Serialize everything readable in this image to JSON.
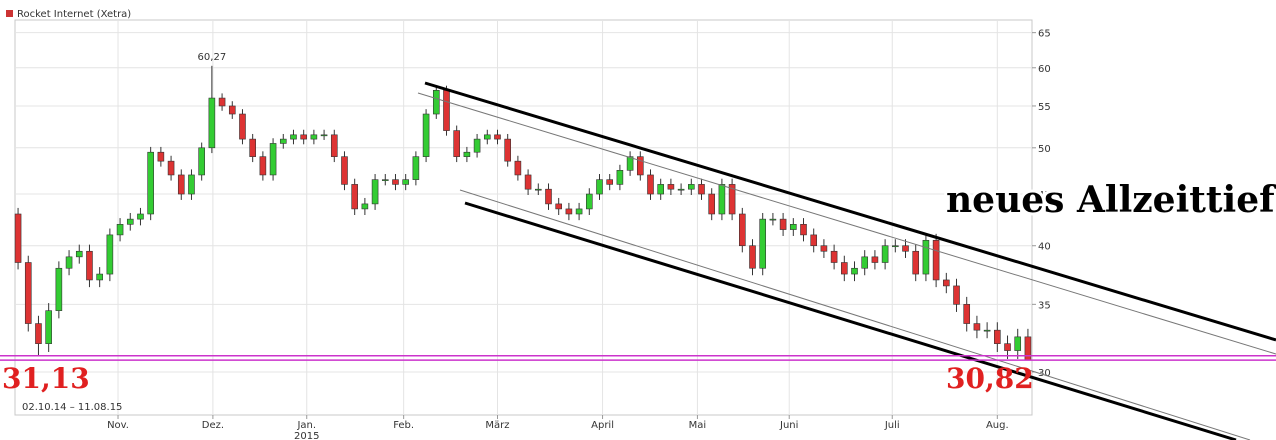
{
  "chart_data": {
    "type": "candlestick",
    "legend": "Rocket Internet (Xetra)",
    "color": "#cc3333",
    "up_color": "#33cc33",
    "down_color": "#dd3333",
    "date_range": "02.10.14 – 11.08.15",
    "annotation": "neues Allzeittief",
    "peak": {
      "value": 60.27,
      "label": "60,27"
    },
    "hlines": [
      {
        "value": 31.13,
        "label": "31,13"
      },
      {
        "value": 30.82,
        "label": "30,82"
      }
    ],
    "hline_color": "#cc33cc",
    "log_scale": true,
    "grid": true,
    "ylim": [
      27.2,
      66.9
    ],
    "yticks": [
      30,
      35,
      40,
      45,
      50,
      55,
      60,
      65
    ],
    "xlim": [
      -0.3,
      99.4
    ],
    "xticks": [
      {
        "value": 9.8,
        "label": "Nov."
      },
      {
        "value": 19.1,
        "label": "Dez."
      },
      {
        "value": 28.3,
        "label": "Jan."
      },
      {
        "value": 37.8,
        "label": "Feb."
      },
      {
        "value": 47,
        "label": "März"
      },
      {
        "value": 57.3,
        "label": "April"
      },
      {
        "value": 66.6,
        "label": "Mai"
      },
      {
        "value": 75.6,
        "label": "Juni"
      },
      {
        "value": 85.7,
        "label": "Juli"
      },
      {
        "value": 96,
        "label": "Aug."
      }
    ],
    "year_label": "2015",
    "open": [
      43,
      38.5,
      33.5,
      32,
      34.5,
      38,
      39,
      39.5,
      37,
      37.5,
      41,
      42,
      42.5,
      43,
      49.5,
      48.5,
      47,
      45,
      47,
      50,
      56,
      55,
      54,
      51,
      49,
      47,
      50.5,
      51,
      51.5,
      51,
      51.5,
      51.5,
      49,
      46,
      43.5,
      44,
      46.5,
      46.5,
      46,
      46.5,
      49,
      54,
      57,
      52,
      49,
      49.5,
      51,
      51.5,
      51,
      48.5,
      47,
      45.5,
      45.5,
      44,
      43.5,
      43,
      43.5,
      45,
      46.5,
      46,
      47.5,
      49,
      47,
      45,
      46,
      45.5,
      45.5,
      46,
      45,
      43,
      46,
      43,
      40,
      38,
      42.5,
      42.5,
      41.5,
      42,
      41,
      40,
      39.5,
      38.5,
      37.5,
      38,
      39,
      38.5,
      40,
      40,
      39.5,
      37.5,
      40.5,
      37,
      36.5,
      35,
      33.5,
      33,
      33,
      32,
      31.5,
      32.5
    ],
    "high": [
      43.6,
      39.1,
      34.1,
      35.1,
      38.6,
      39.6,
      40.1,
      40.1,
      38.1,
      41.6,
      42.6,
      43.1,
      43.6,
      50.1,
      50.1,
      49.1,
      47.6,
      47.6,
      50.6,
      60.27,
      56.6,
      55.6,
      54.6,
      51.6,
      49.6,
      51.1,
      51.6,
      52.1,
      52.1,
      52.1,
      52.1,
      52.1,
      49.6,
      46.6,
      44.6,
      47.1,
      47.1,
      47.1,
      47.1,
      49.6,
      54.6,
      57.6,
      57.6,
      52.6,
      50.1,
      51.6,
      52.1,
      52.1,
      51.6,
      49.1,
      47.6,
      46.1,
      46.1,
      44.6,
      44.1,
      44.1,
      45.6,
      47.1,
      47.1,
      48.1,
      49.6,
      49.6,
      47.6,
      46.6,
      46.6,
      46.1,
      46.6,
      46.6,
      45.6,
      46.6,
      46.6,
      43.6,
      40.6,
      43.1,
      43.1,
      43.1,
      42.6,
      42.6,
      41.6,
      40.6,
      40.1,
      39.1,
      38.6,
      39.6,
      39.6,
      40.6,
      40.6,
      40.6,
      40.1,
      41.1,
      41.1,
      37.6,
      37.1,
      35.6,
      34.1,
      33.6,
      33.6,
      32.6,
      33.1,
      33.1
    ],
    "low": [
      37.9,
      32.9,
      31.13,
      31.4,
      33.9,
      37.4,
      38.4,
      36.4,
      36.4,
      36.9,
      40.4,
      41.4,
      41.9,
      42.4,
      47.9,
      46.4,
      44.4,
      44.4,
      46.4,
      49.4,
      54.4,
      53.4,
      50.4,
      48.4,
      46.4,
      46.4,
      49.9,
      50.4,
      50.4,
      50.4,
      50.9,
      48.4,
      45.4,
      42.9,
      42.9,
      43.4,
      45.9,
      45.4,
      45.4,
      45.9,
      48.4,
      53.4,
      51.4,
      48.4,
      48.4,
      48.9,
      50.4,
      50.4,
      47.9,
      46.4,
      44.9,
      44.9,
      43.4,
      42.9,
      42.4,
      42.4,
      42.9,
      44.4,
      45.4,
      45.4,
      46.9,
      46.4,
      44.4,
      44.4,
      44.9,
      44.9,
      44.9,
      44.4,
      42.4,
      42.4,
      42.4,
      39.4,
      37.4,
      37.4,
      41.9,
      40.9,
      40.9,
      40.4,
      39.4,
      38.9,
      37.9,
      36.9,
      36.9,
      37.4,
      37.9,
      37.9,
      39.4,
      38.9,
      36.9,
      36.9,
      36.4,
      35.9,
      34.4,
      32.9,
      32.4,
      32.4,
      31.4,
      30.9,
      30.9,
      30.82
    ],
    "close": [
      38.5,
      33.5,
      32,
      34.5,
      38,
      39,
      39.5,
      37,
      37.5,
      41,
      42,
      42.5,
      43,
      49.5,
      48.5,
      47,
      45,
      47,
      50,
      56,
      55,
      54,
      51,
      49,
      47,
      50.5,
      51,
      51.5,
      51,
      51.5,
      51.5,
      49,
      46,
      43.5,
      44,
      46.5,
      46.5,
      46,
      46.5,
      49,
      54,
      57,
      52,
      49,
      49.5,
      51,
      51.5,
      51,
      48.5,
      47,
      45.5,
      45.5,
      44,
      43.5,
      43,
      43.5,
      45,
      46.5,
      46,
      47.5,
      49,
      47,
      45,
      46,
      45.5,
      45.5,
      46,
      45,
      43,
      46,
      43,
      40,
      38,
      42.5,
      42.5,
      41.5,
      42,
      41,
      40,
      39.5,
      38.5,
      37.5,
      38,
      39,
      38.5,
      40,
      40,
      39.5,
      37.5,
      40.5,
      37,
      36.5,
      35,
      33.5,
      33,
      33,
      32,
      31.5,
      32.5,
      30.82
    ]
  }
}
